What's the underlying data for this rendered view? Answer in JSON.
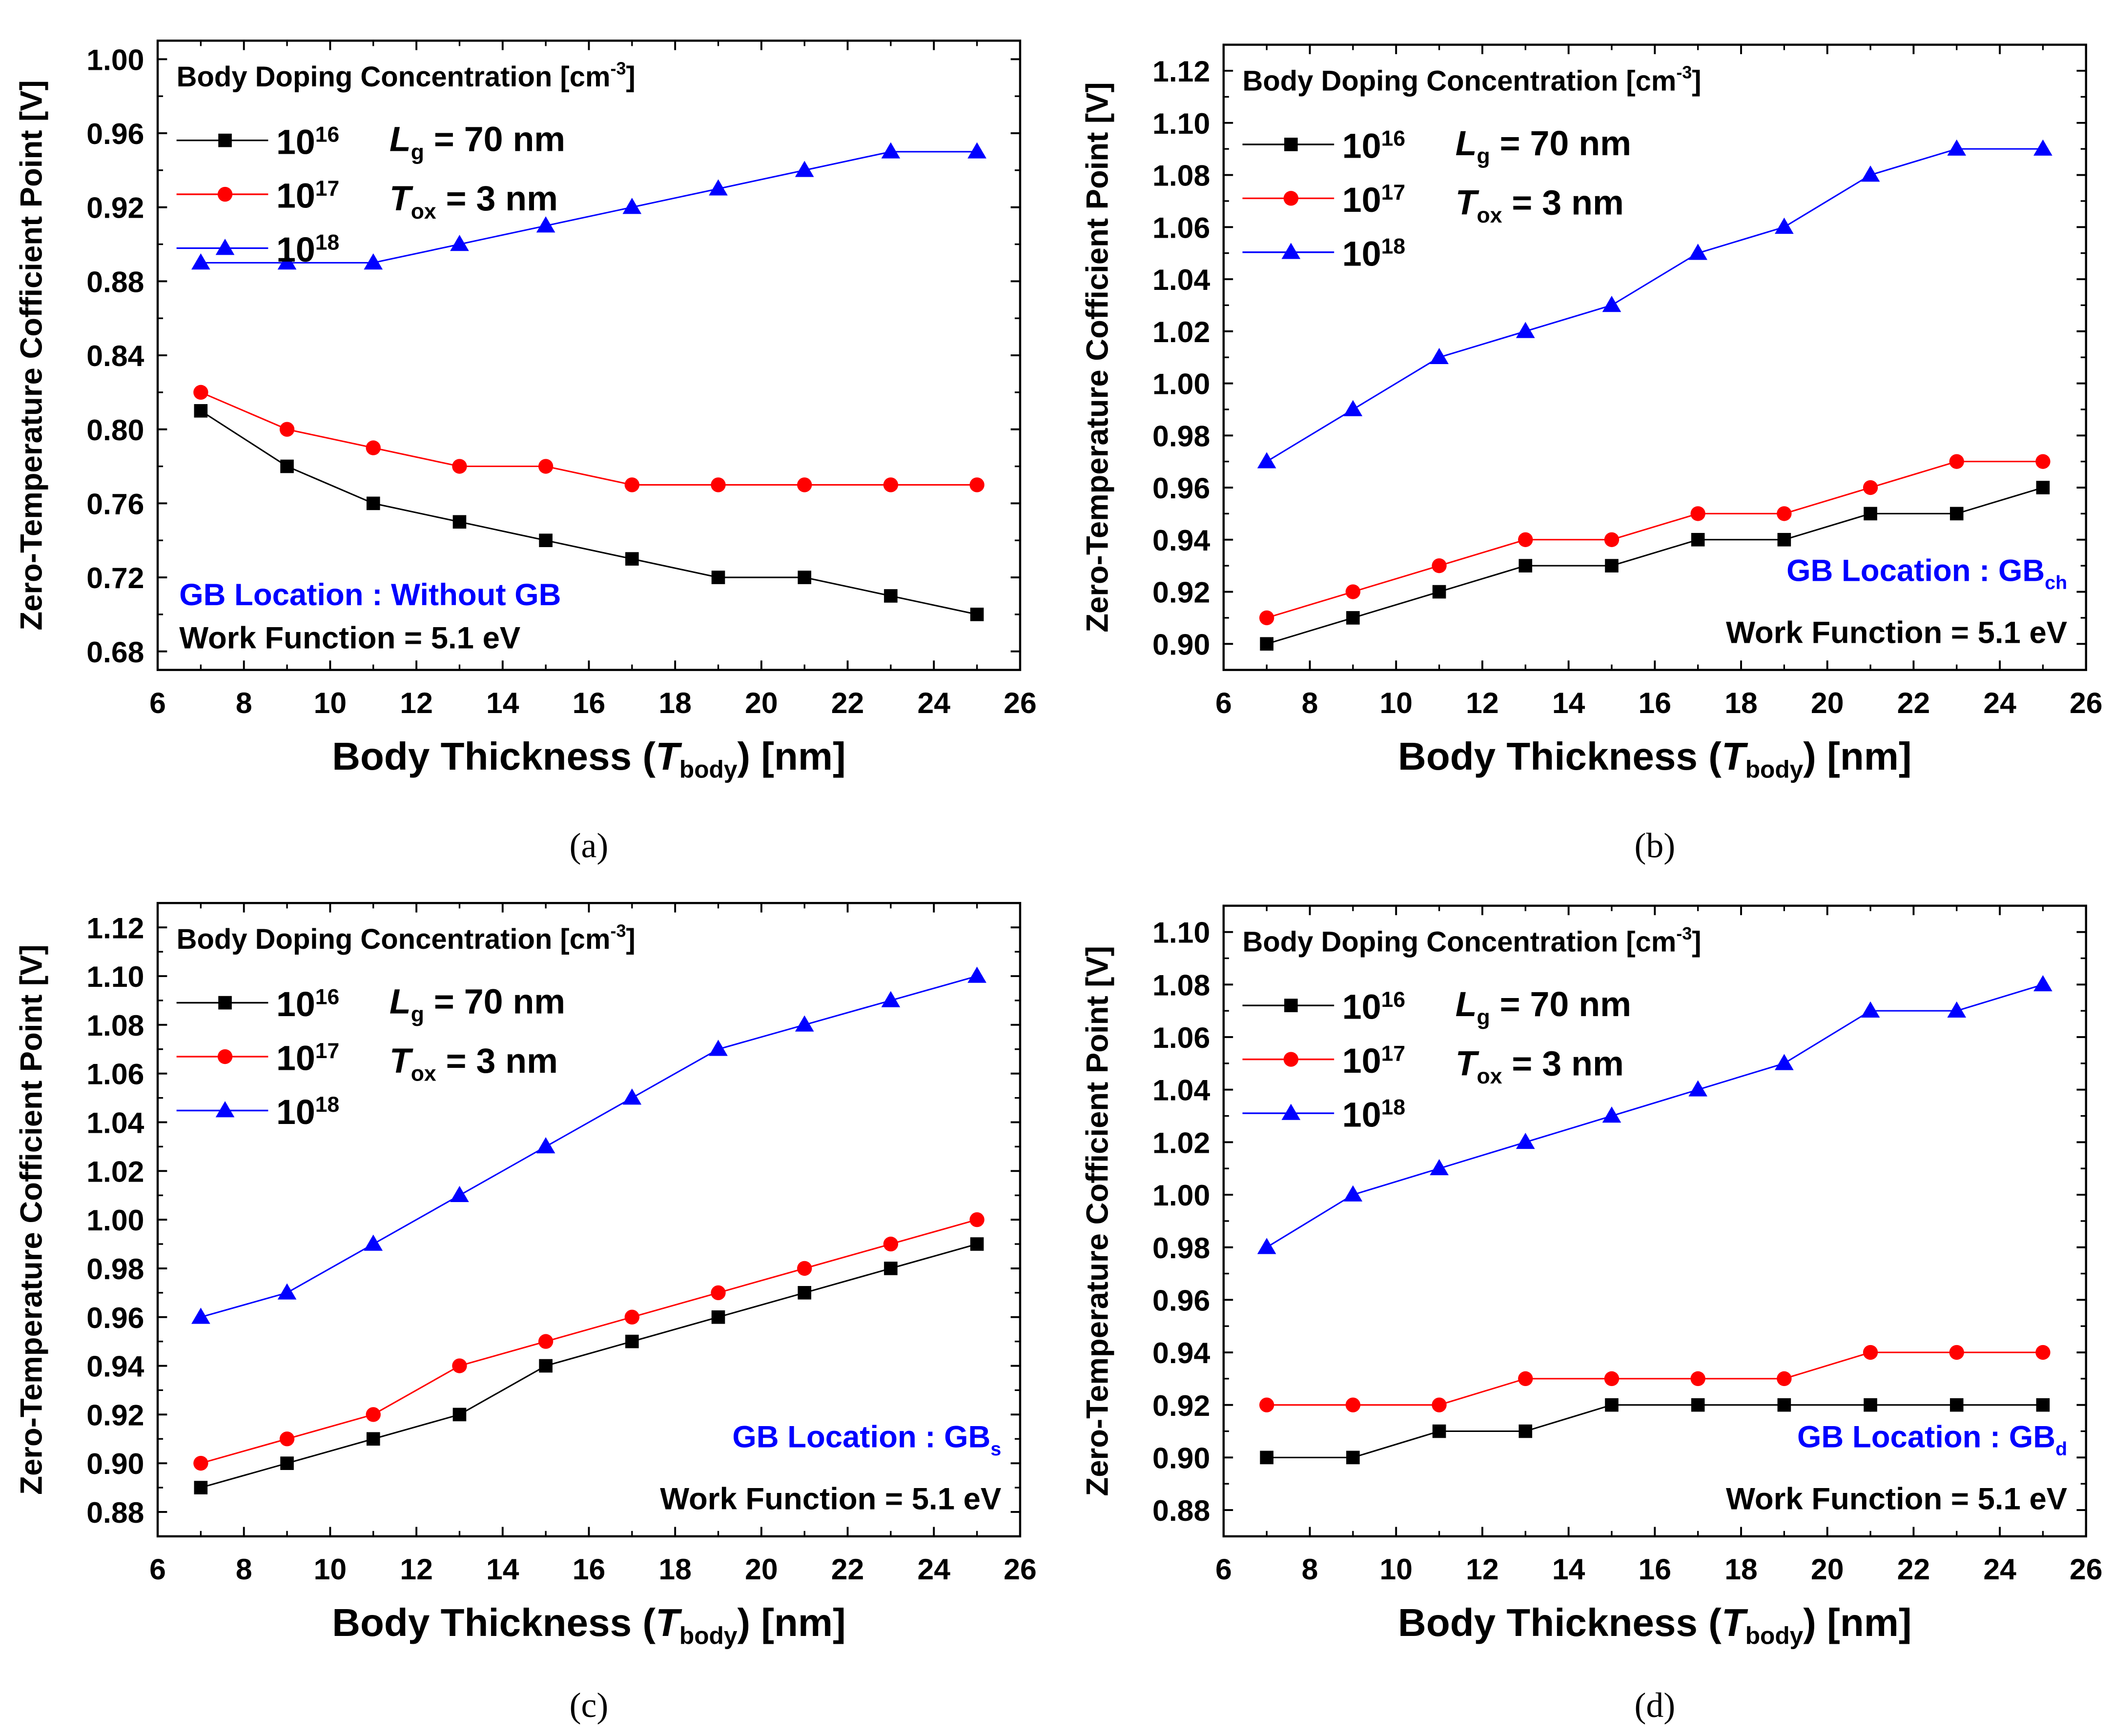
{
  "colors": {
    "s16": "#000000",
    "s17": "#ff0000",
    "s18": "#0000ff",
    "annotation": "#0000ff"
  },
  "chart_data": [
    {
      "type": "line",
      "caption": "(a)",
      "xlabel": "Body Thickness (T_body) [nm]",
      "ylabel": "Zero-Temperature Cofficient Point [V]",
      "xlim": [
        6,
        26
      ],
      "ylim": [
        0.67,
        1.01
      ],
      "xticks": [
        6,
        8,
        10,
        12,
        14,
        16,
        18,
        20,
        22,
        24,
        26
      ],
      "yticks": [
        0.68,
        0.72,
        0.76,
        0.8,
        0.84,
        0.88,
        0.92,
        0.96,
        1.0
      ],
      "legend_title": "Body Doping Concentration [cm-3]",
      "legend_position": "top-left",
      "params": {
        "lg": "L_g = 70 nm",
        "tox": "T_ox = 3 nm"
      },
      "gb_text": "GB Location : Without GB",
      "gb_sub": "",
      "work_function": "Work Function = 5.1 eV",
      "annot_position": "bottom-left",
      "x": [
        7,
        9,
        11,
        13,
        15,
        17,
        19,
        21,
        23,
        25
      ],
      "series": [
        {
          "name": "10^16",
          "marker": "square",
          "values": [
            0.81,
            0.78,
            0.76,
            0.75,
            0.74,
            0.73,
            0.72,
            0.72,
            0.71,
            0.7
          ]
        },
        {
          "name": "10^17",
          "marker": "circle",
          "values": [
            0.82,
            0.8,
            0.79,
            0.78,
            0.78,
            0.77,
            0.77,
            0.77,
            0.77,
            0.77
          ]
        },
        {
          "name": "10^18",
          "marker": "triangle",
          "values": [
            0.89,
            0.89,
            0.89,
            0.9,
            0.91,
            0.92,
            0.93,
            0.94,
            0.95,
            0.95
          ]
        }
      ]
    },
    {
      "type": "line",
      "caption": "(b)",
      "xlabel": "Body Thickness (T_body) [nm]",
      "ylabel": "Zero-Temperature Cofficient Point [V]",
      "xlim": [
        6,
        26
      ],
      "ylim": [
        0.89,
        1.13
      ],
      "xticks": [
        6,
        8,
        10,
        12,
        14,
        16,
        18,
        20,
        22,
        24,
        26
      ],
      "yticks": [
        0.9,
        0.92,
        0.94,
        0.96,
        0.98,
        1.0,
        1.02,
        1.04,
        1.06,
        1.08,
        1.1,
        1.12
      ],
      "legend_title": "Body Doping Concentration [cm-3]",
      "legend_position": "top-left",
      "params": {
        "lg": "L_g = 70 nm",
        "tox": "T_ox = 3 nm"
      },
      "gb_text": "GB Location : GB",
      "gb_sub": "ch",
      "work_function": "Work Function = 5.1 eV",
      "annot_position": "bottom-right",
      "x": [
        7,
        9,
        11,
        13,
        15,
        17,
        19,
        21,
        23,
        25
      ],
      "series": [
        {
          "name": "10^16",
          "marker": "square",
          "values": [
            0.9,
            0.91,
            0.92,
            0.93,
            0.93,
            0.94,
            0.94,
            0.95,
            0.95,
            0.96
          ]
        },
        {
          "name": "10^17",
          "marker": "circle",
          "values": [
            0.91,
            0.92,
            0.93,
            0.94,
            0.94,
            0.95,
            0.95,
            0.96,
            0.97,
            0.97
          ]
        },
        {
          "name": "10^18",
          "marker": "triangle",
          "values": [
            0.97,
            0.99,
            1.01,
            1.02,
            1.03,
            1.05,
            1.06,
            1.08,
            1.09,
            1.09
          ]
        }
      ]
    },
    {
      "type": "line",
      "caption": "(c)",
      "xlabel": "Body Thickness (T_body) [nm]",
      "ylabel": "Zero-Temperature Cofficient Point [V]",
      "xlim": [
        6,
        26
      ],
      "ylim": [
        0.87,
        1.13
      ],
      "xticks": [
        6,
        8,
        10,
        12,
        14,
        16,
        18,
        20,
        22,
        24,
        26
      ],
      "yticks": [
        0.88,
        0.9,
        0.92,
        0.94,
        0.96,
        0.98,
        1.0,
        1.02,
        1.04,
        1.06,
        1.08,
        1.1,
        1.12
      ],
      "legend_title": "Body Doping Concentration [cm-3]",
      "legend_position": "top-left",
      "params": {
        "lg": "L_g = 70 nm",
        "tox": "T_ox = 3 nm"
      },
      "gb_text": "GB Location : GB",
      "gb_sub": "s",
      "work_function": "Work Function = 5.1 eV",
      "annot_position": "bottom-right",
      "x": [
        7,
        9,
        11,
        13,
        15,
        17,
        19,
        21,
        23,
        25
      ],
      "series": [
        {
          "name": "10^16",
          "marker": "square",
          "values": [
            0.89,
            0.9,
            0.91,
            0.92,
            0.94,
            0.95,
            0.96,
            0.97,
            0.98,
            0.99
          ]
        },
        {
          "name": "10^17",
          "marker": "circle",
          "values": [
            0.9,
            0.91,
            0.92,
            0.94,
            0.95,
            0.96,
            0.97,
            0.98,
            0.99,
            1.0
          ]
        },
        {
          "name": "10^18",
          "marker": "triangle",
          "values": [
            0.96,
            0.97,
            0.99,
            1.01,
            1.03,
            1.05,
            1.07,
            1.08,
            1.09,
            1.1
          ]
        }
      ]
    },
    {
      "type": "line",
      "caption": "(d)",
      "xlabel": "Body Thickness (T_body) [nm]",
      "ylabel": "Zero-Temperature Cofficient Point [V]",
      "xlim": [
        6,
        26
      ],
      "ylim": [
        0.87,
        1.11
      ],
      "xticks": [
        6,
        8,
        10,
        12,
        14,
        16,
        18,
        20,
        22,
        24,
        26
      ],
      "yticks": [
        0.88,
        0.9,
        0.92,
        0.94,
        0.96,
        0.98,
        1.0,
        1.02,
        1.04,
        1.06,
        1.08,
        1.1
      ],
      "legend_title": "Body Doping Concentration [cm-3]",
      "legend_position": "top-left",
      "params": {
        "lg": "L_g = 70 nm",
        "tox": "T_ox = 3 nm"
      },
      "gb_text": "GB Location : GB",
      "gb_sub": "d",
      "work_function": "Work Function = 5.1 eV",
      "annot_position": "bottom-right",
      "x": [
        7,
        9,
        11,
        13,
        15,
        17,
        19,
        21,
        23,
        25
      ],
      "series": [
        {
          "name": "10^16",
          "marker": "square",
          "values": [
            0.9,
            0.9,
            0.91,
            0.91,
            0.92,
            0.92,
            0.92,
            0.92,
            0.92,
            0.92
          ]
        },
        {
          "name": "10^17",
          "marker": "circle",
          "values": [
            0.92,
            0.92,
            0.92,
            0.93,
            0.93,
            0.93,
            0.93,
            0.94,
            0.94,
            0.94
          ]
        },
        {
          "name": "10^18",
          "marker": "triangle",
          "values": [
            0.98,
            1.0,
            1.01,
            1.02,
            1.03,
            1.04,
            1.05,
            1.07,
            1.07,
            1.08
          ]
        }
      ]
    }
  ]
}
